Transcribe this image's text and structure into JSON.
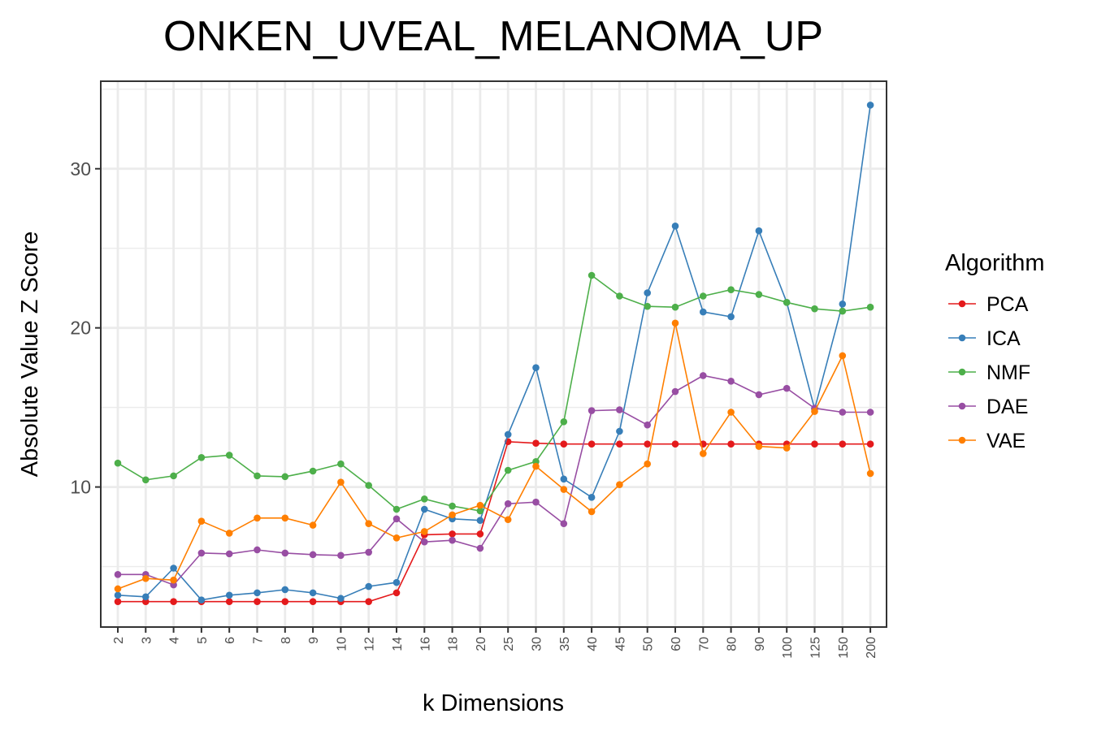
{
  "chart_data": {
    "type": "line",
    "title": "ONKEN_UVEAL_MELANOMA_UP",
    "xlabel": "k Dimensions",
    "ylabel": "Absolute Value Z Score",
    "categories": [
      "2",
      "3",
      "4",
      "5",
      "6",
      "7",
      "8",
      "9",
      "10",
      "12",
      "14",
      "16",
      "18",
      "20",
      "25",
      "30",
      "35",
      "40",
      "45",
      "50",
      "60",
      "70",
      "80",
      "90",
      "100",
      "125",
      "150",
      "200"
    ],
    "ylim": [
      1.2,
      35.5
    ],
    "yticks": [
      10,
      20,
      30
    ],
    "grid": true,
    "legend": {
      "title": "Algorithm",
      "position": "right"
    },
    "series": [
      {
        "name": "PCA",
        "color": "#e41a1c",
        "values": [
          2.8,
          2.8,
          2.8,
          2.8,
          2.8,
          2.8,
          2.8,
          2.8,
          2.8,
          2.8,
          3.35,
          7.0,
          7.05,
          7.05,
          12.85,
          12.75,
          12.7,
          12.7,
          12.7,
          12.7,
          12.7,
          12.7,
          12.7,
          12.7,
          12.7,
          12.7,
          12.7,
          12.7
        ]
      },
      {
        "name": "ICA",
        "color": "#377eb8",
        "values": [
          3.2,
          3.1,
          4.9,
          2.9,
          3.2,
          3.35,
          3.55,
          3.35,
          3.0,
          3.75,
          4.0,
          8.6,
          8.0,
          7.9,
          13.3,
          17.5,
          10.5,
          9.35,
          13.5,
          22.2,
          26.4,
          21.0,
          20.7,
          26.1,
          21.6,
          14.9,
          21.5,
          34.0
        ]
      },
      {
        "name": "NMF",
        "color": "#4daf4a",
        "values": [
          11.5,
          10.45,
          10.7,
          11.85,
          12.0,
          10.7,
          10.65,
          11.0,
          11.45,
          10.1,
          8.6,
          9.25,
          8.8,
          8.5,
          11.05,
          11.6,
          14.1,
          23.3,
          22.0,
          21.35,
          21.3,
          22.0,
          22.4,
          22.1,
          21.6,
          21.2,
          21.05,
          21.3
        ]
      },
      {
        "name": "DAE",
        "color": "#984ea3",
        "values": [
          4.5,
          4.5,
          3.85,
          5.85,
          5.8,
          6.05,
          5.85,
          5.75,
          5.7,
          5.9,
          8.0,
          6.55,
          6.65,
          6.15,
          8.95,
          9.05,
          7.7,
          14.8,
          14.85,
          13.9,
          16.0,
          17.0,
          16.65,
          15.8,
          16.2,
          14.95,
          14.7,
          14.7
        ]
      },
      {
        "name": "VAE",
        "color": "#ff7f00",
        "values": [
          3.6,
          4.25,
          4.15,
          7.85,
          7.1,
          8.05,
          8.05,
          7.6,
          10.3,
          7.7,
          6.8,
          7.2,
          8.25,
          8.85,
          7.95,
          11.3,
          9.85,
          8.45,
          10.15,
          11.45,
          20.3,
          12.1,
          14.7,
          12.55,
          12.45,
          14.75,
          18.25,
          10.85
        ]
      }
    ]
  }
}
